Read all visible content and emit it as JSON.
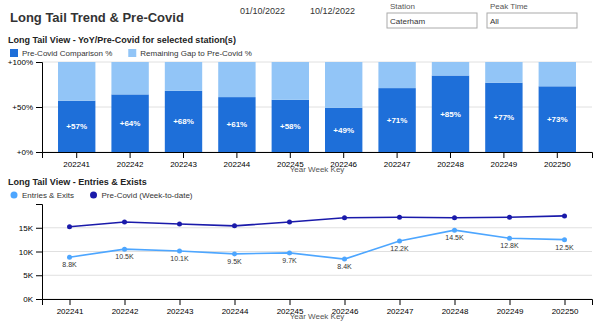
{
  "header": {
    "title": "Long Tail Trend & Pre-Covid",
    "date_from": "01/10/2022",
    "date_to": "10/12/2022",
    "fields": [
      {
        "label": "Station",
        "text": "Caterham"
      },
      {
        "label": "Peak Time",
        "text": "All"
      }
    ]
  },
  "chart_data": [
    {
      "type": "bar",
      "title": "Long Tail View - YoY/Pre-Covid for selected station(s)",
      "x_label": "Year Week Key",
      "categories": [
        "202241",
        "202242",
        "202243",
        "202244",
        "202245",
        "202246",
        "202247",
        "202248",
        "202249",
        "202250"
      ],
      "series": [
        {
          "name": "Pre-Covid Comparison %",
          "color": "#1e6fd9",
          "values": [
            57,
            64,
            68,
            61,
            58,
            49,
            71,
            85,
            77,
            73
          ],
          "value_labels": [
            "+57%",
            "+64%",
            "+68%",
            "+61%",
            "+58%",
            "+49%",
            "+71%",
            "+85%",
            "+77%",
            "+73%"
          ]
        },
        {
          "name": "Remaining Gap to Pre-Covid %",
          "color": "#92c5f7",
          "values": [
            43,
            36,
            32,
            39,
            42,
            51,
            29,
            15,
            23,
            27
          ]
        }
      ],
      "stacked": true,
      "data_labels": true,
      "grid": true,
      "legend": "top-left",
      "ylim": [
        0,
        100
      ],
      "yticks": [
        {
          "value": 0,
          "label": "+0%"
        },
        {
          "value": 50,
          "label": "+50%"
        },
        {
          "value": 100,
          "label": "+100%"
        }
      ]
    },
    {
      "type": "line",
      "title": "Long Tail View - Entries & Exists",
      "x_label": "Year Week Key",
      "categories": [
        "202241",
        "202242",
        "202243",
        "202244",
        "202245",
        "202246",
        "202247",
        "202248",
        "202249",
        "202250"
      ],
      "series": [
        {
          "name": "Entries & Exits",
          "color": "#4da6ff",
          "marker": "circle",
          "values": [
            8800,
            10500,
            10100,
            9500,
            9700,
            8400,
            12200,
            14500,
            12800,
            12500
          ],
          "value_labels": [
            "8.8K",
            "10.5K",
            "10.1K",
            "9.5K",
            "9.7K",
            "8.4K",
            "12.2K",
            "14.5K",
            "12.8K",
            "12.5K"
          ]
        },
        {
          "name": "Pre-Covid (Week-to-date)",
          "color": "#1a1aaa",
          "marker": "circle",
          "values": [
            15200,
            16200,
            15800,
            15400,
            16200,
            17100,
            17200,
            17100,
            17200,
            17500
          ]
        }
      ],
      "data_labels": true,
      "grid": true,
      "legend": "top-left",
      "ylim": [
        0,
        20000
      ],
      "yticks": [
        {
          "value": 0,
          "label": "0K"
        },
        {
          "value": 5000,
          "label": "5K"
        },
        {
          "value": 10000,
          "label": "10K"
        },
        {
          "value": 15000,
          "label": "15K"
        }
      ]
    }
  ]
}
